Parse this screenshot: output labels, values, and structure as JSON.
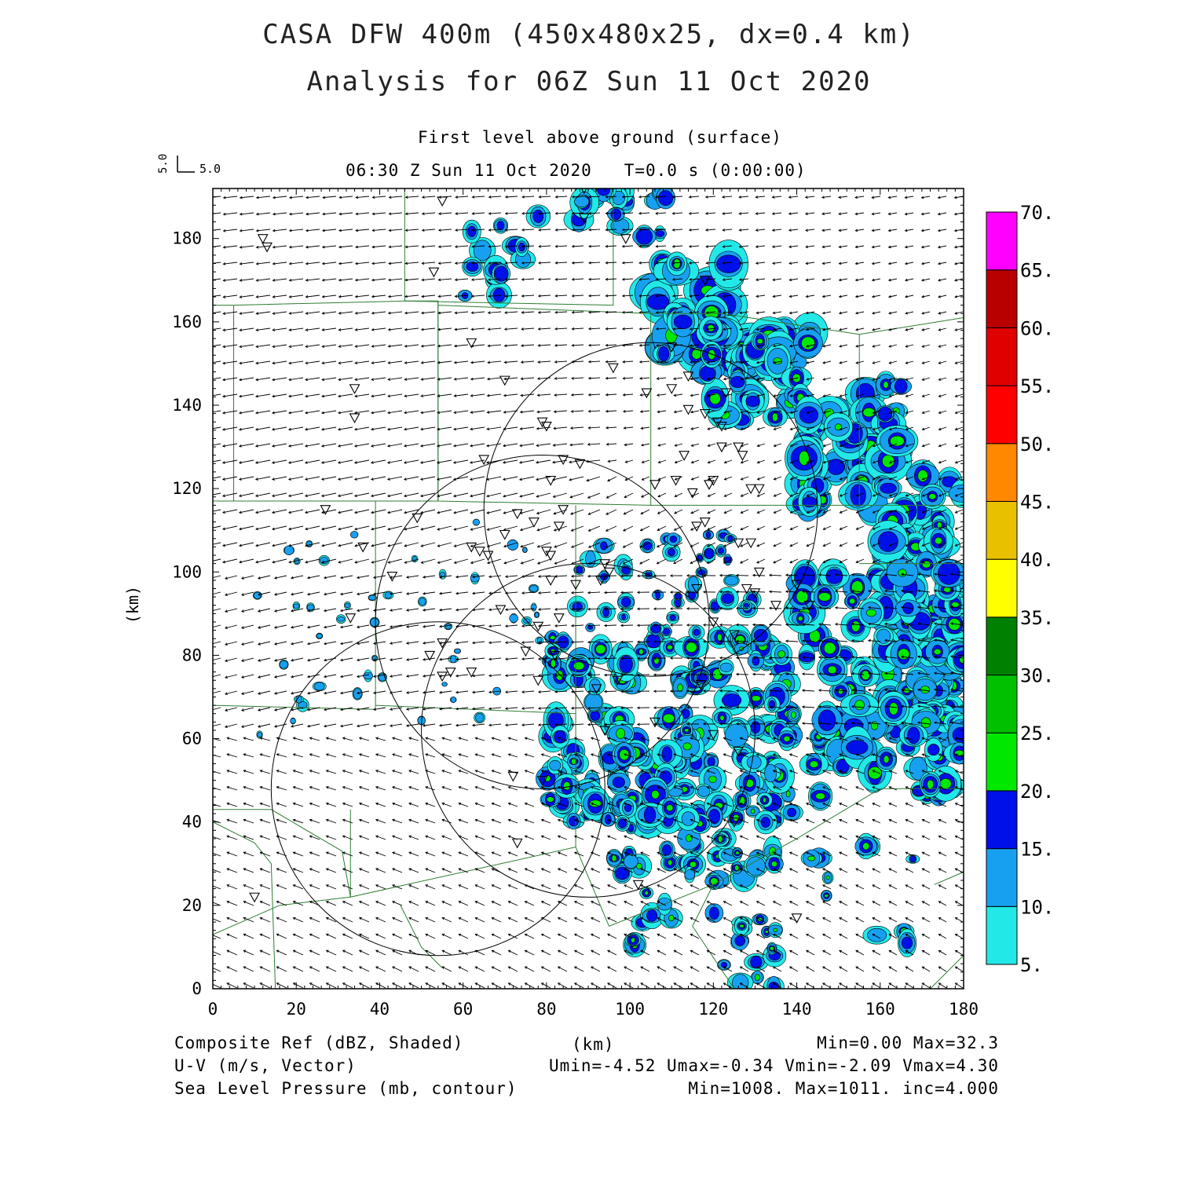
{
  "header": {
    "title_line1": "CASA DFW 400m (450x480x25, dx=0.4 km)",
    "title_line2": "Analysis for 06Z Sun 11 Oct 2020",
    "level": "First level above ground (surface)",
    "time": "06:30 Z Sun 11 Oct 2020   T=0.0 s (0:00:00)",
    "vector_ref_x": "5.0",
    "vector_ref_y": "5.0"
  },
  "axes": {
    "x_label": "(km)",
    "y_label": "(km)",
    "x_ticks": [
      "0",
      "20",
      "40",
      "60",
      "80",
      "100",
      "120",
      "140",
      "160",
      "180"
    ],
    "y_ticks": [
      "0",
      "20",
      "40",
      "60",
      "80",
      "100",
      "120",
      "140",
      "160",
      "180"
    ],
    "x_range": [
      0,
      180
    ],
    "y_range": [
      0,
      192
    ]
  },
  "colorbar": {
    "labels": [
      "5.",
      "10.",
      "15.",
      "20.",
      "25.",
      "30.",
      "35.",
      "40.",
      "45.",
      "50.",
      "55.",
      "60.",
      "65.",
      "70."
    ],
    "colors": [
      "#22e8e8",
      "#18a0f0",
      "#0010e8",
      "#00e800",
      "#00c000",
      "#008000",
      "#ffff00",
      "#e8c000",
      "#ff8800",
      "#ff0000",
      "#e00000",
      "#b80000",
      "#ff00ff"
    ]
  },
  "footer": {
    "field1": "Composite Ref (dBZ, Shaded)",
    "field2": "U-V (m/s, Vector)",
    "field3": "Sea Level Pressure (mb, contour)",
    "unit": "(km)",
    "stats1": "Min=0.00 Max=32.3",
    "stats2": "Umin=-4.52 Umax=-0.34 Vmin=-2.09 Vmax=4.30",
    "stats3": "Min=1008. Max=1011. inc=4.000"
  },
  "radar_rings": [
    {
      "cx_km": 54,
      "cy_km": 48,
      "r_km": 40
    },
    {
      "cx_km": 90,
      "cy_km": 62,
      "r_km": 40
    },
    {
      "cx_km": 79,
      "cy_km": 88,
      "r_km": 40
    },
    {
      "cx_km": 105,
      "cy_km": 115,
      "r_km": 40
    }
  ],
  "stations_km": [
    [
      55,
      189
    ],
    [
      89,
      192
    ],
    [
      12,
      180
    ],
    [
      13,
      178
    ],
    [
      89,
      185
    ],
    [
      99,
      180
    ],
    [
      53,
      172
    ],
    [
      118,
      170
    ],
    [
      62,
      155
    ],
    [
      110,
      154
    ],
    [
      96,
      149
    ],
    [
      34,
      144
    ],
    [
      70,
      146
    ],
    [
      104,
      143
    ],
    [
      110,
      144
    ],
    [
      114,
      147
    ],
    [
      123,
      143
    ],
    [
      34,
      137
    ],
    [
      79,
      136
    ],
    [
      80,
      135
    ],
    [
      114,
      139
    ],
    [
      118,
      138
    ],
    [
      121,
      136
    ],
    [
      122,
      135
    ],
    [
      65,
      127
    ],
    [
      84,
      127
    ],
    [
      88,
      126
    ],
    [
      113,
      128
    ],
    [
      122,
      130
    ],
    [
      126,
      130
    ],
    [
      127,
      128
    ],
    [
      106,
      121
    ],
    [
      111,
      122
    ],
    [
      115,
      119
    ],
    [
      119,
      121
    ],
    [
      120,
      122
    ],
    [
      129,
      120
    ],
    [
      131,
      120
    ],
    [
      81,
      122
    ],
    [
      27,
      115
    ],
    [
      84,
      115
    ],
    [
      73,
      114
    ],
    [
      77,
      112
    ],
    [
      83,
      111
    ],
    [
      118,
      112
    ],
    [
      116,
      111
    ],
    [
      49,
      113
    ],
    [
      70,
      109
    ],
    [
      36,
      106
    ],
    [
      62,
      106
    ],
    [
      64,
      105
    ],
    [
      66,
      104
    ],
    [
      80,
      105
    ],
    [
      81,
      104
    ],
    [
      126,
      107
    ],
    [
      129,
      107
    ],
    [
      94,
      102
    ],
    [
      95,
      100
    ],
    [
      131,
      100
    ],
    [
      43,
      99
    ],
    [
      81,
      98
    ],
    [
      87,
      97
    ],
    [
      93,
      98
    ],
    [
      116,
      96
    ],
    [
      128,
      96
    ],
    [
      130,
      95
    ],
    [
      140,
      97
    ],
    [
      69,
      91
    ],
    [
      135,
      92
    ],
    [
      143,
      92
    ],
    [
      33,
      89
    ],
    [
      83,
      89
    ],
    [
      78,
      87
    ],
    [
      120,
      88
    ],
    [
      125,
      85
    ],
    [
      55,
      83
    ],
    [
      82,
      80
    ],
    [
      75,
      81
    ],
    [
      52,
      80
    ],
    [
      55,
      75
    ],
    [
      57,
      76
    ],
    [
      62,
      76
    ],
    [
      78,
      74
    ],
    [
      92,
      72
    ],
    [
      97,
      74
    ],
    [
      117,
      73
    ],
    [
      106,
      64
    ],
    [
      94,
      62
    ],
    [
      120,
      61
    ],
    [
      126,
      57
    ],
    [
      72,
      51
    ],
    [
      79,
      50
    ],
    [
      125,
      40
    ],
    [
      73,
      35
    ],
    [
      102,
      25
    ],
    [
      10,
      22
    ],
    [
      140,
      17
    ]
  ]
}
